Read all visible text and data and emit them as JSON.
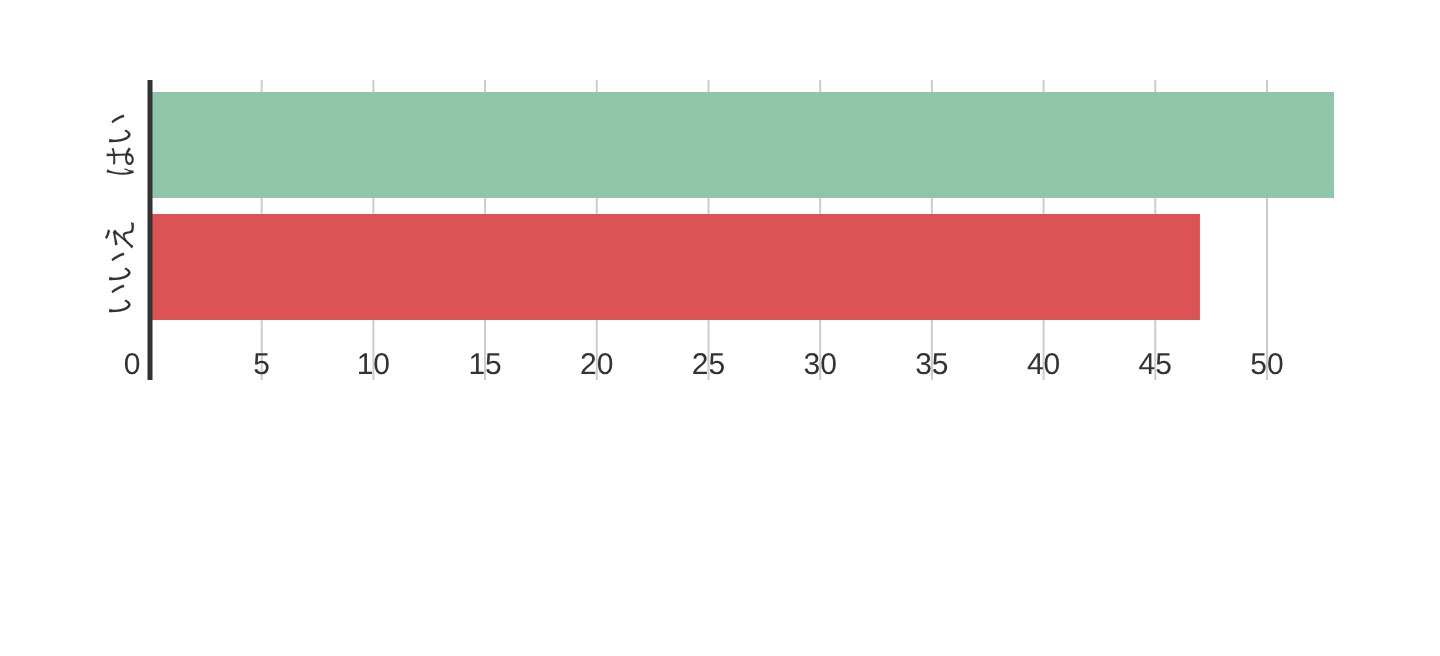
{
  "chart_data": {
    "type": "bar",
    "orientation": "horizontal",
    "categories": [
      "はい",
      "いいえ"
    ],
    "values": [
      53,
      47
    ],
    "colors": [
      "#8fc5a8",
      "#dc5356"
    ],
    "xlim": [
      0,
      53
    ],
    "xticks": [
      0,
      5,
      10,
      15,
      20,
      25,
      30,
      35,
      40,
      45,
      50
    ],
    "grid": "x"
  }
}
